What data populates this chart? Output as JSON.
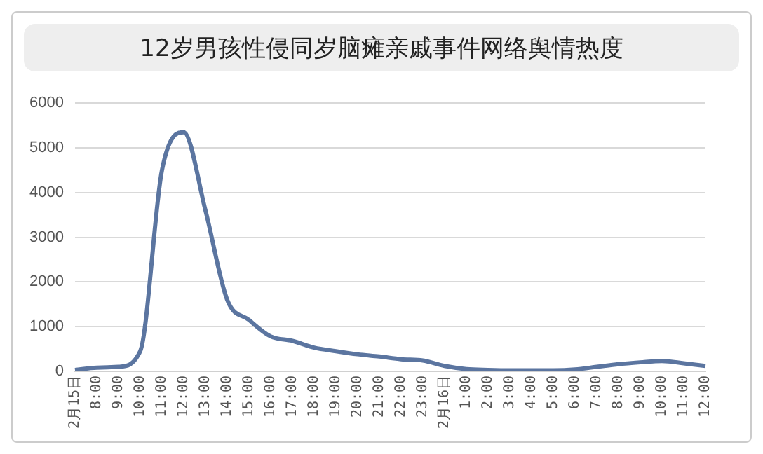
{
  "chart_data": {
    "type": "line",
    "title": "12岁男孩性侵同岁脑瘫亲戚事件网络舆情热度",
    "categories": [
      "2月15日",
      "8:00",
      "9:00",
      "10:00",
      "11:00",
      "12:00",
      "13:00",
      "14:00",
      "15:00",
      "16:00",
      "17:00",
      "18:00",
      "19:00",
      "20:00",
      "21:00",
      "22:00",
      "23:00",
      "2月16日",
      "1:00",
      "2:00",
      "3:00",
      "4:00",
      "5:00",
      "6:00",
      "7:00",
      "8:00",
      "9:00",
      "10:00",
      "11:00",
      "12:00"
    ],
    "series": [
      {
        "color": "#5b75a0",
        "values": [
          30,
          80,
          100,
          450,
          4500,
          5350,
          3600,
          1600,
          1150,
          780,
          680,
          530,
          450,
          380,
          330,
          270,
          240,
          120,
          50,
          30,
          20,
          20,
          20,
          40,
          100,
          160,
          200,
          230,
          180,
          120
        ]
      }
    ],
    "ylim": [
      0,
      6000
    ],
    "yticks": [
      0,
      1000,
      2000,
      3000,
      4000,
      5000,
      6000
    ],
    "grid": "y",
    "legend": false,
    "marker": "none",
    "line_style": "solid"
  }
}
